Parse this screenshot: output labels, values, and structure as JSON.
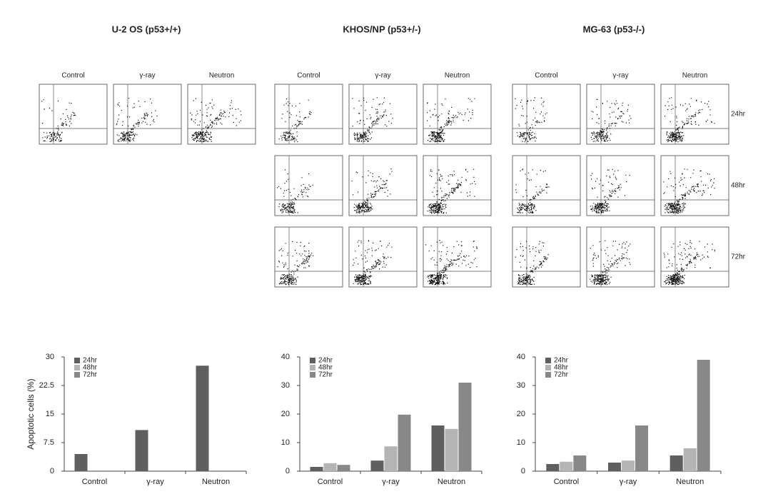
{
  "groups": [
    {
      "title": "U-2 OS (p53+/+)",
      "columns": [
        "Control",
        "γ-ray",
        "Neutron"
      ]
    },
    {
      "title": "KHOS/NP (p53+/-)",
      "columns": [
        "Control",
        "γ-ray",
        "Neutron"
      ]
    },
    {
      "title": "MG-63 (p53-/-)",
      "columns": [
        "Control",
        "γ-ray",
        "Neutron"
      ]
    }
  ],
  "row_labels": [
    "24hr",
    "48hr",
    "72hr"
  ],
  "chart_data": [
    {
      "type": "bar",
      "y_label": "Apoptotic cells (%)",
      "categories": [
        "Control",
        "γ-ray",
        "Neutron"
      ],
      "series": [
        {
          "name": "24hr",
          "color": "#5f5f5f",
          "values": [
            4.5,
            10.8,
            27.7
          ]
        },
        {
          "name": "48hr",
          "color": "#b4b4b4",
          "values": [
            null,
            null,
            null
          ]
        },
        {
          "name": "72hr",
          "color": "#888888",
          "values": [
            null,
            null,
            null
          ]
        }
      ],
      "ylim": [
        0,
        30
      ],
      "yticks": [
        0,
        7.5,
        15,
        22.5,
        30
      ]
    },
    {
      "type": "bar",
      "categories": [
        "Control",
        "γ-ray",
        "Neutron"
      ],
      "series": [
        {
          "name": "24hr",
          "color": "#5f5f5f",
          "values": [
            1.5,
            3.7,
            16
          ]
        },
        {
          "name": "48hr",
          "color": "#b4b4b4",
          "values": [
            2.8,
            8.7,
            14.8
          ]
        },
        {
          "name": "72hr",
          "color": "#888888",
          "values": [
            2.2,
            19.8,
            31
          ]
        }
      ],
      "ylim": [
        0,
        40
      ],
      "yticks": [
        0,
        10,
        20,
        30,
        40
      ]
    },
    {
      "type": "bar",
      "categories": [
        "Control",
        "γ-ray",
        "Neutron"
      ],
      "series": [
        {
          "name": "24hr",
          "color": "#5f5f5f",
          "values": [
            2.5,
            3,
            5.5
          ]
        },
        {
          "name": "48hr",
          "color": "#b4b4b4",
          "values": [
            3.3,
            3.7,
            8
          ]
        },
        {
          "name": "72hr",
          "color": "#888888",
          "values": [
            5.5,
            16,
            39
          ]
        }
      ],
      "ylim": [
        0,
        40
      ],
      "yticks": [
        0,
        10,
        20,
        30,
        40
      ]
    }
  ]
}
